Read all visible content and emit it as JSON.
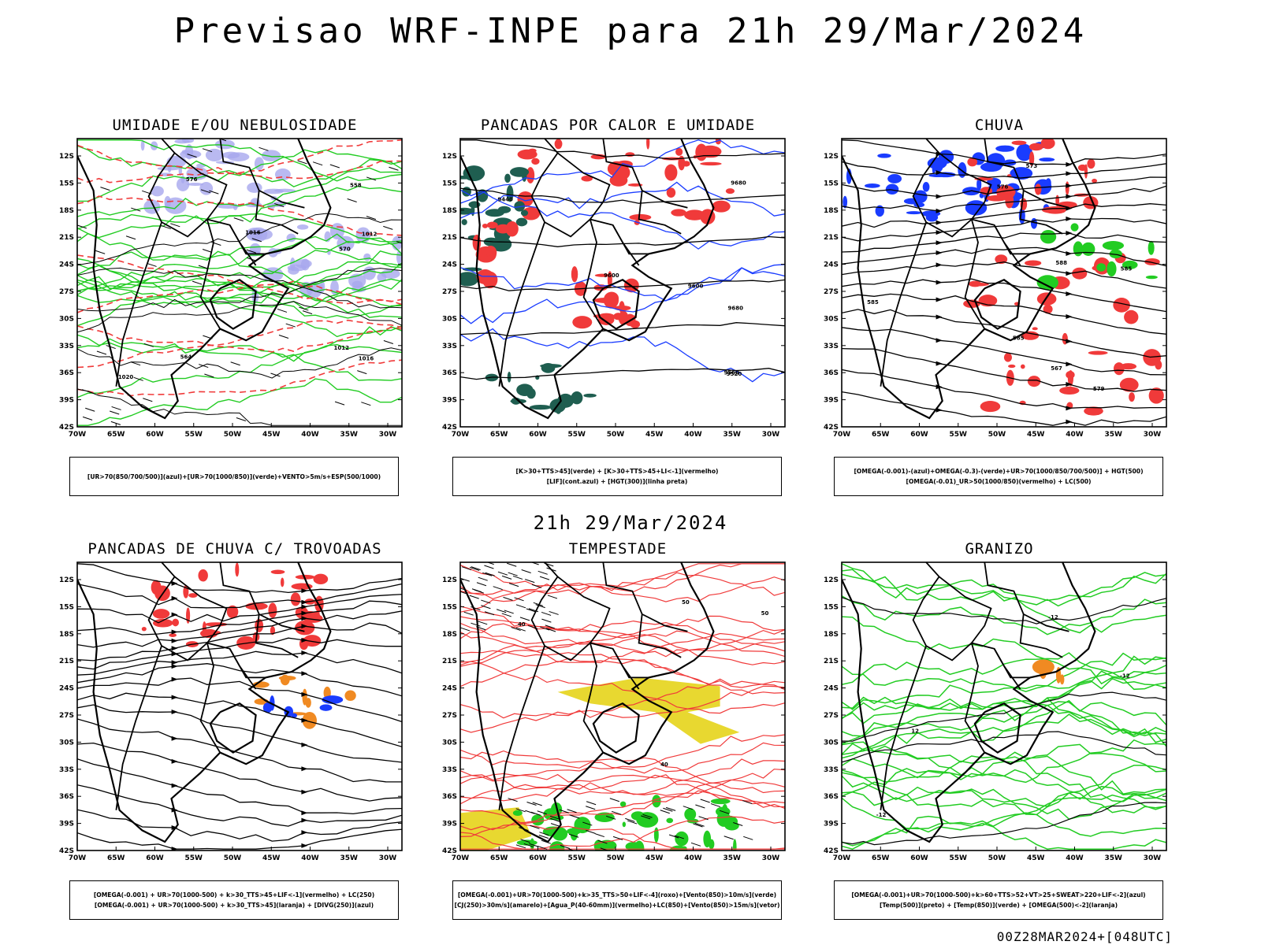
{
  "title": "Previsao WRF-INPE  para 21h 29/Mar/2024",
  "subtitle": "21h 29/Mar/2024",
  "footer": "00Z28MAR2024+[048UTC]",
  "axes": {
    "lat_labels": [
      "12S",
      "15S",
      "18S",
      "21S",
      "24S",
      "27S",
      "30S",
      "33S",
      "36S",
      "39S",
      "42S"
    ],
    "lon_labels": [
      "70W",
      "65W",
      "60W",
      "55W",
      "50W",
      "45W",
      "40W",
      "35W",
      "30W"
    ]
  },
  "colors": {
    "blue": "#1a3cff",
    "lavender": "#a8a8ee",
    "green": "#22cc22",
    "red": "#f03a3a",
    "orange": "#f08a22",
    "yellow": "#e8d830",
    "darkgreen": "#1f5e50",
    "purple": "#9b30c8"
  },
  "panels": [
    {
      "id": "umidade",
      "title": "UMIDADE E/OU NEBULOSIDADE",
      "legend": [
        "[UR>70(850/700/500)](azul)+[UR>70(1000/850)](verde)+VENTO>5m/s+ESP(500/1000)"
      ],
      "contour_labels": [
        "1012",
        "1012",
        "1016",
        "1016",
        "1020",
        "576",
        "570",
        "564",
        "558"
      ]
    },
    {
      "id": "pancadas_calor",
      "title": "PANCADAS POR CALOR E UMIDADE",
      "legend": [
        "[K>30+TTS>45](verde) + [K>30+TTS>45+LI<-1](vermelho)",
        "[LIF](cont.azul) + [HGT(300)](linha preta)"
      ],
      "contour_labels": [
        "9680",
        "9600",
        "9520",
        "9440",
        "9560",
        "9680",
        "9600"
      ]
    },
    {
      "id": "chuva",
      "title": "CHUVA",
      "legend": [
        "[OMEGA(-0.001)-(azul)+OMEGA(-0.3)-(verde)+UR>70(1000/850/700/500)] + HGT(500)",
        "[OMEGA(-0.01)_UR>50(1000/850)(vermelho) + LC(500)"
      ],
      "contour_labels": [
        "585",
        "585",
        "579",
        "573",
        "567",
        "576",
        "585",
        "588"
      ]
    },
    {
      "id": "trovoadas",
      "title": "PANCADAS DE CHUVA C/ TROVOADAS",
      "legend": [
        "[OMEGA(-0.001) + UR>70(1000-500) + k>30_TTS>45+LIF<-1](vermelho) + LC(250)",
        "[OMEGA(-0.001) + UR>70(1000-500) + k>30_TTS>45](laranja) + [DIVG(250)](azul)"
      ],
      "contour_labels": []
    },
    {
      "id": "tempestade",
      "title": "TEMPESTADE",
      "legend": [
        "[OMEGA(-0.001)+UR>70(1000-500)+k>35_TTS>50+LIF<-4](roxo)+[Vento(850)>10m/s](verde)",
        "[CJ(250)>30m/s](amarelo)+[Agua_P(40-60mm)](vermelho)+LC(850)+[Vento(850)>15m/s](vetor)"
      ],
      "contour_labels": [
        "50",
        "40",
        "50",
        "40"
      ]
    },
    {
      "id": "granizo",
      "title": "GRANIZO",
      "legend": [
        "[OMEGA(-0.001)+UR>70(1000-500)+k>60+TTS>52+VT>25+SWEAT>220+LIF<-2](azul)",
        "[Temp(500)](preto) + [Temp(850)](verde) + [OMEGA(500)<-2](laranja)"
      ],
      "contour_labels": [
        "-12",
        "-12",
        "-12",
        "12"
      ]
    }
  ]
}
